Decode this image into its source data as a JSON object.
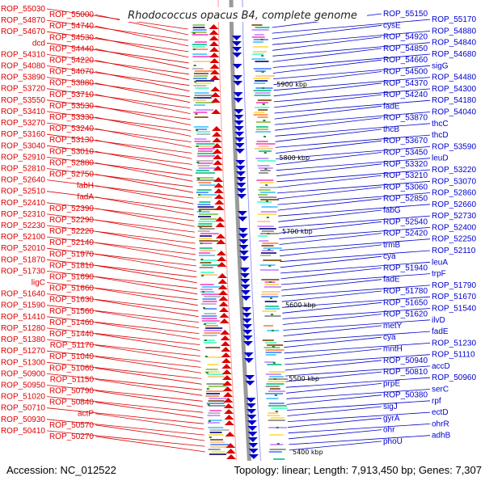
{
  "title": "Rhodococcus opacus B4, complete genome",
  "footer": {
    "accession": "Accession: NC_012522",
    "topology": "Topology: linear; Length: 7,913,450 bp; Genes: 7,307"
  },
  "colors": {
    "forward_strand": "#dd0000",
    "reverse_strand": "#0000cc",
    "backbone": "#888888",
    "tick": "#2a8a2a"
  },
  "scale_labels": [
    "5900 kbp",
    "5800 kbp",
    "5700 kbp",
    "5600 kbp",
    "5500 kbp",
    "5400 kbp"
  ],
  "left_labels": [
    "ROP_55030",
    "ROP_55000",
    "ROP_54870",
    "ROP_54740",
    "ROP_54670",
    "ROP_54530",
    "dcd",
    "ROP_54440",
    "ROP_54310",
    "ROP_54220",
    "ROP_54080",
    "ROP_54070",
    "ROP_53890",
    "ROP_53880",
    "ROP_53720",
    "ROP_53710",
    "ROP_53550",
    "ROP_53530",
    "ROP_53410",
    "ROP_53330",
    "ROP_53270",
    "ROP_53240",
    "ROP_53160",
    "ROP_53130",
    "ROP_53040",
    "ROP_53010",
    "ROP_52910",
    "ROP_52880",
    "ROP_52810",
    "ROP_52750",
    "ROP_52640",
    "fabH",
    "ROP_52510",
    "fadA",
    "ROP_52410",
    "ROP_52390",
    "ROP_52310",
    "ROP_52290",
    "ROP_52230",
    "ROP_52220",
    "ROP_52100",
    "ROP_52140",
    "ROP_52010",
    "ROP_51970",
    "ROP_51870",
    "ROP_51810",
    "ROP_51730",
    "ROP_51690",
    "ligC",
    "ROP_51660",
    "ROP_51640",
    "ROP_51630",
    "ROP_51590",
    "ROP_51560",
    "ROP_51410",
    "ROP_51460",
    "ROP_51280",
    "ROP_51440",
    "ROP_51380",
    "ROP_51170",
    "ROP_51270",
    "ROP_51040",
    "ROP_51300",
    "ROP_51060",
    "ROP_50900",
    "ROP_51150",
    "ROP_50950",
    "ROP_50790",
    "ROP_51020",
    "ROP_50840",
    "ROP_50710",
    "actP",
    "ROP_50930",
    "ROP_50570",
    "ROP_50410",
    "ROP_50270"
  ],
  "right_labels": [
    "ROP_55150",
    "ROP_55170",
    "cysE",
    "ROP_54880",
    "ROP_54920",
    "ROP_54840",
    "ROP_54850",
    "ROP_54680",
    "ROP_54660",
    "sigG",
    "ROP_54500",
    "ROP_54480",
    "ROP_54370",
    "ROP_54300",
    "ROP_54240",
    "ROP_54180",
    "fadE",
    "ROP_54040",
    "ROP_53870",
    "thcC",
    "thcB",
    "thcD",
    "ROP_53670",
    "ROP_53590",
    "ROP_53450",
    "leuD",
    "ROP_53320",
    "ROP_53220",
    "ROP_53210",
    "ROP_53070",
    "ROP_53060",
    "ROP_52860",
    "ROP_52850",
    "ROP_52660",
    "fabG",
    "ROP_52730",
    "ROP_52540",
    "ROP_52400",
    "ROP_52420",
    "ROP_52250",
    "trmB",
    "ROP_52110",
    "cya",
    "leuA",
    "ROP_51940",
    "trpF",
    "fadE",
    "ROP_51790",
    "ROP_51780",
    "ROP_51670",
    "ROP_51650",
    "ROP_51540",
    "ROP_51620",
    "ilvD",
    "metY",
    "fadE",
    "cya",
    "ROP_51230",
    "mntH",
    "ROP_51110",
    "ROP_50940",
    "accD",
    "ROP_50810",
    "ROP_50960",
    "prpE",
    "serC",
    "ROP_50380",
    "rpf",
    "sigJ",
    "ectD",
    "gyrA",
    "ohrR",
    "ohr",
    "adhB",
    "phoU"
  ]
}
